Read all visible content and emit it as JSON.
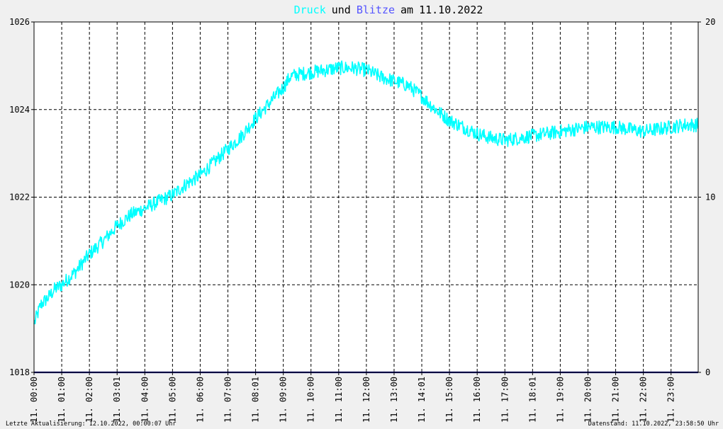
{
  "chart_data": {
    "type": "line",
    "title": {
      "word1": "Druck",
      "word2": "und",
      "word3": "Blitze",
      "word4": "am",
      "date": "11.10.2022"
    },
    "colors": {
      "druck": "#00ffff",
      "blitze": "#5555ff",
      "blitze_line": "#000080",
      "title_text": "#000000",
      "grid": "#000000",
      "plot_bg": "#ffffff",
      "page_bg": "#f0f0f0"
    },
    "x_tick_labels": [
      "11. 00:00",
      "11. 01:00",
      "11. 02:00",
      "11. 03:01",
      "11. 04:00",
      "11. 05:00",
      "11. 06:00",
      "11. 07:00",
      "11. 08:01",
      "11. 09:00",
      "11. 10:00",
      "11. 11:00",
      "11. 12:00",
      "11. 13:00",
      "11. 14:01",
      "11. 15:00",
      "11. 16:00",
      "11. 17:00",
      "11. 18:01",
      "11. 19:00",
      "11. 20:00",
      "11. 21:00",
      "11. 22:00",
      "11. 23:00"
    ],
    "y_left": {
      "ticks": [
        "1018",
        "1020",
        "1022",
        "1024",
        "1026"
      ],
      "min": 1018,
      "max": 1026
    },
    "y_right": {
      "ticks": [
        "0",
        "10",
        "20"
      ],
      "min": 0,
      "max": 20
    },
    "x_range_hours": [
      0,
      23.98
    ],
    "grid": true,
    "series": [
      {
        "name": "Druck",
        "axis": "left",
        "x": [
          0,
          0.25,
          0.5,
          0.75,
          1,
          1.5,
          2,
          2.5,
          3,
          3.5,
          4,
          4.5,
          5,
          5.5,
          6,
          6.5,
          7,
          7.5,
          8,
          8.5,
          9,
          9.25,
          9.5,
          10,
          10.5,
          11,
          11.5,
          12,
          12.5,
          13,
          13.5,
          14,
          14.5,
          15,
          15.5,
          16,
          16.5,
          17,
          17.5,
          18,
          18.5,
          19,
          19.5,
          20,
          20.5,
          21,
          21.5,
          22,
          22.5,
          23,
          23.5,
          23.98
        ],
        "values": [
          1019.1,
          1019.55,
          1019.7,
          1019.9,
          1020.0,
          1020.3,
          1020.7,
          1021.0,
          1021.35,
          1021.6,
          1021.75,
          1021.9,
          1022.05,
          1022.3,
          1022.5,
          1022.8,
          1023.1,
          1023.4,
          1023.8,
          1024.15,
          1024.5,
          1024.75,
          1024.8,
          1024.85,
          1024.9,
          1024.95,
          1024.95,
          1024.9,
          1024.75,
          1024.65,
          1024.55,
          1024.3,
          1024.0,
          1023.75,
          1023.6,
          1023.45,
          1023.35,
          1023.3,
          1023.35,
          1023.4,
          1023.45,
          1023.5,
          1023.55,
          1023.6,
          1023.6,
          1023.6,
          1023.55,
          1023.5,
          1023.55,
          1023.6,
          1023.65,
          1023.65
        ]
      },
      {
        "name": "Blitze",
        "axis": "right",
        "x": [
          0,
          23.98
        ],
        "values": [
          0,
          0
        ]
      }
    ],
    "footer": {
      "left": "Letzte Aktualisierung: 12.10.2022, 00:00:07 Uhr",
      "right": "Datenstand: 11.10.2022, 23:58:50 Uhr"
    }
  }
}
